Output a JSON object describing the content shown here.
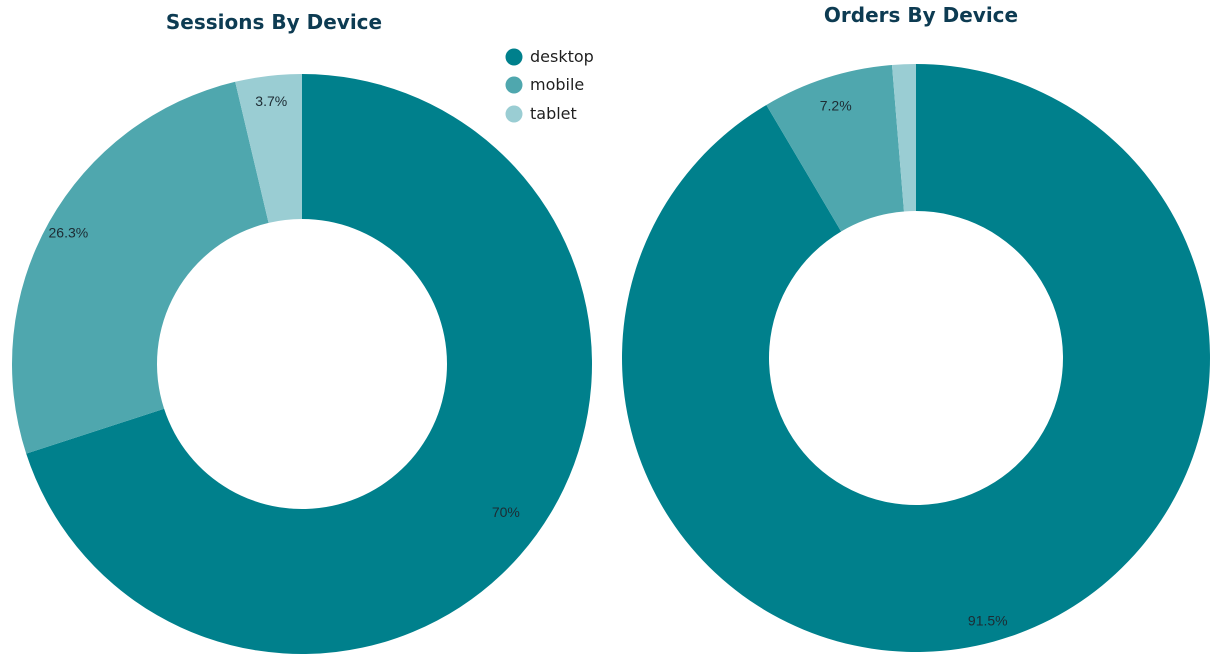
{
  "chart_data": [
    {
      "type": "pie",
      "variant": "donut",
      "title": "Sessions By Device",
      "slices": [
        {
          "name": "desktop",
          "value": 70,
          "label": "70%"
        },
        {
          "name": "mobile",
          "value": 26.3,
          "label": "26.3%"
        },
        {
          "name": "tablet",
          "value": 3.7,
          "label": "3.7%"
        }
      ]
    },
    {
      "type": "pie",
      "variant": "donut",
      "title": "Orders By Device",
      "slices": [
        {
          "name": "desktop",
          "value": 91.5,
          "label": "91.5%"
        },
        {
          "name": "mobile",
          "value": 7.2,
          "label": "7.2%"
        },
        {
          "name": "tablet",
          "value": 1.3,
          "label": ""
        }
      ]
    }
  ],
  "legend": {
    "placement": "top-right of first chart",
    "items": [
      {
        "name": "desktop",
        "color": "#00808c"
      },
      {
        "name": "mobile",
        "color": "#4fa7ae"
      },
      {
        "name": "tablet",
        "color": "#9acdd3"
      }
    ]
  },
  "colors": {
    "desktop": "#00808c",
    "mobile": "#4fa7ae",
    "tablet": "#9acdd3",
    "title": "#0d3b52"
  }
}
